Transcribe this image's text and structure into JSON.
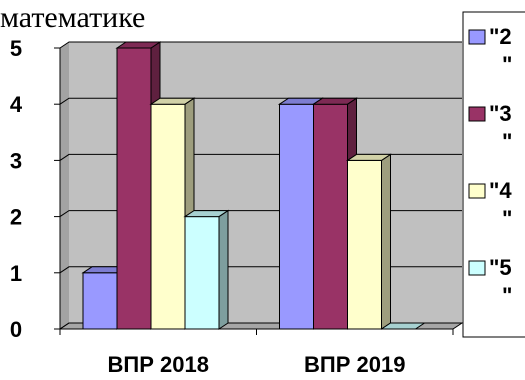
{
  "header": {
    "partial_title": "математике"
  },
  "colors": {
    "series_2": "#9999ff",
    "series_3": "#993366",
    "series_4": "#ffffcc",
    "series_5": "#ccffff",
    "wall": "#c0c0c0",
    "floor": "#a6a6a6",
    "grid": "#000000"
  },
  "chart_data": {
    "type": "bar",
    "categories": [
      "ВПР 2018",
      "ВПР 2019"
    ],
    "series": [
      {
        "name": "\"2\"",
        "values": [
          1,
          4
        ]
      },
      {
        "name": "\"3\"",
        "values": [
          5,
          4
        ]
      },
      {
        "name": "\"4\"",
        "values": [
          4,
          3
        ]
      },
      {
        "name": "\"5\"",
        "values": [
          2,
          0
        ]
      }
    ],
    "yticks": [
      "0",
      "1",
      "2",
      "3",
      "4",
      "5"
    ],
    "ylim": [
      0,
      5
    ],
    "grid": true,
    "legend_position": "right",
    "style": "3d-clustered-column"
  },
  "legend": {
    "items": [
      {
        "line1": "\"2",
        "line2": "\""
      },
      {
        "line1": "\"3",
        "line2": "\""
      },
      {
        "line1": "\"4",
        "line2": "\""
      },
      {
        "line1": "\"5",
        "line2": "\""
      }
    ]
  }
}
